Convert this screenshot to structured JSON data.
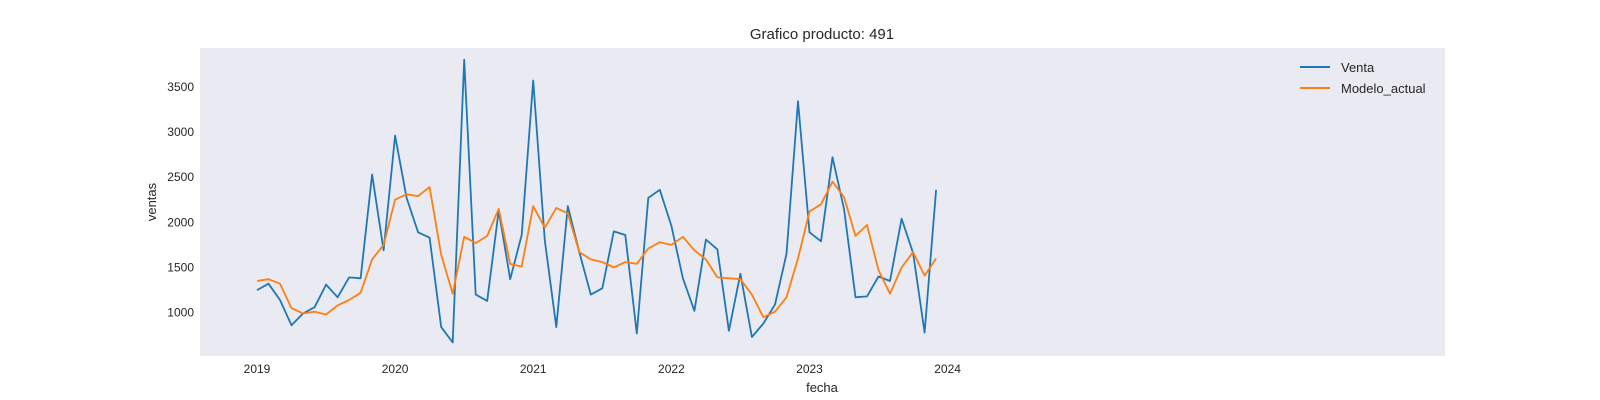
{
  "chart_data": {
    "type": "line",
    "title": "Grafico producto: 491",
    "xlabel": "fecha",
    "ylabel": "ventas",
    "x_start": "2019-01",
    "x_ticks": [
      "2019",
      "2020",
      "2021",
      "2022",
      "2023",
      "2024"
    ],
    "y_ticks": [
      1000,
      1500,
      2000,
      2500,
      3000,
      3500
    ],
    "ylim": [
      520,
      3930
    ],
    "grid": false,
    "legend_position": "top-right",
    "plot_background": "#eaeaf2",
    "series": [
      {
        "name": "Venta",
        "color": "#1f77b4",
        "values": [
          1250,
          1320,
          1140,
          860,
          990,
          1060,
          1310,
          1170,
          1390,
          1380,
          2530,
          1690,
          2960,
          2270,
          1890,
          1830,
          840,
          670,
          3800,
          1200,
          1130,
          2130,
          1370,
          1860,
          3570,
          1800,
          840,
          2180,
          1670,
          1200,
          1270,
          1900,
          1860,
          770,
          2270,
          2360,
          1960,
          1380,
          1020,
          1810,
          1700,
          800,
          1430,
          730,
          880,
          1090,
          1650,
          3340,
          1890,
          1790,
          2720,
          2150,
          1170,
          1180,
          1400,
          1350,
          2040,
          1660,
          780,
          2360
        ]
      },
      {
        "name": "Modelo_actual",
        "color": "#ff7f0e",
        "values": [
          1350,
          1370,
          1320,
          1050,
          990,
          1010,
          980,
          1080,
          1140,
          1220,
          1590,
          1750,
          2250,
          2310,
          2290,
          2390,
          1640,
          1210,
          1840,
          1770,
          1850,
          2150,
          1540,
          1510,
          2180,
          1940,
          2160,
          2100,
          1670,
          1590,
          1560,
          1500,
          1560,
          1540,
          1710,
          1780,
          1750,
          1840,
          1690,
          1590,
          1390,
          1380,
          1370,
          1200,
          950,
          1010,
          1170,
          1600,
          2120,
          2200,
          2450,
          2280,
          1850,
          1970,
          1470,
          1210,
          1500,
          1670,
          1410,
          1600
        ]
      }
    ]
  }
}
